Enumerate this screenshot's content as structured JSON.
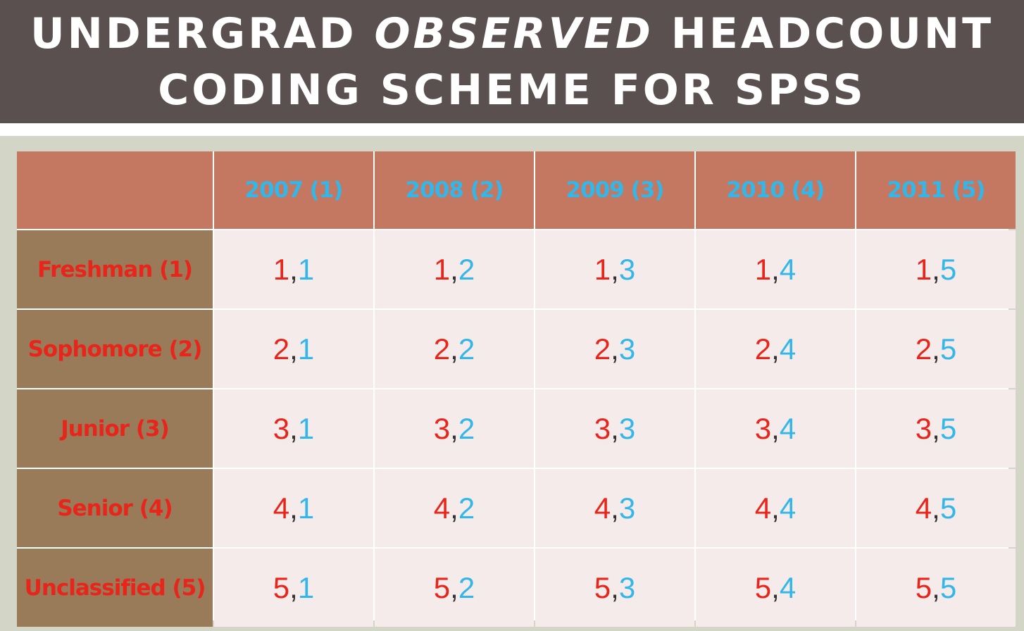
{
  "title": {
    "line1_part1": "UNDERGRAD",
    "line1_italic": "OBSERVED",
    "line1_part2": "HEADCOUNT",
    "line2": "CODING SCHEME FOR SPSS"
  },
  "table": {
    "columns": [
      "2007 (1)",
      "2008 (2)",
      "2009 (3)",
      "2010 (4)",
      "2011 (5)"
    ],
    "rows": [
      {
        "label": "Freshman (1)",
        "cells": [
          [
            "1",
            "1"
          ],
          [
            "1",
            "2"
          ],
          [
            "1",
            "3"
          ],
          [
            "1",
            "4"
          ],
          [
            "1",
            "5"
          ]
        ]
      },
      {
        "label": "Sophomore (2)",
        "cells": [
          [
            "2",
            "1"
          ],
          [
            "2",
            "2"
          ],
          [
            "2",
            "3"
          ],
          [
            "2",
            "4"
          ],
          [
            "2",
            "5"
          ]
        ]
      },
      {
        "label": "Junior (3)",
        "cells": [
          [
            "3",
            "1"
          ],
          [
            "3",
            "2"
          ],
          [
            "3",
            "3"
          ],
          [
            "3",
            "4"
          ],
          [
            "3",
            "5"
          ]
        ]
      },
      {
        "label": "Senior (4)",
        "cells": [
          [
            "4",
            "1"
          ],
          [
            "4",
            "2"
          ],
          [
            "4",
            "3"
          ],
          [
            "4",
            "4"
          ],
          [
            "4",
            "5"
          ]
        ]
      },
      {
        "label": "Unclassified (5)",
        "cells": [
          [
            "5",
            "1"
          ],
          [
            "5",
            "2"
          ],
          [
            "5",
            "3"
          ],
          [
            "5",
            "4"
          ],
          [
            "5",
            "5"
          ]
        ]
      }
    ],
    "separator": ","
  },
  "colors": {
    "title_bg": "#59504f",
    "header_bg": "#c47761",
    "row_header_bg": "#9a7b59",
    "cell_bg": "#f5ebea",
    "red": "#e8251b",
    "blue": "#33b6e8"
  }
}
